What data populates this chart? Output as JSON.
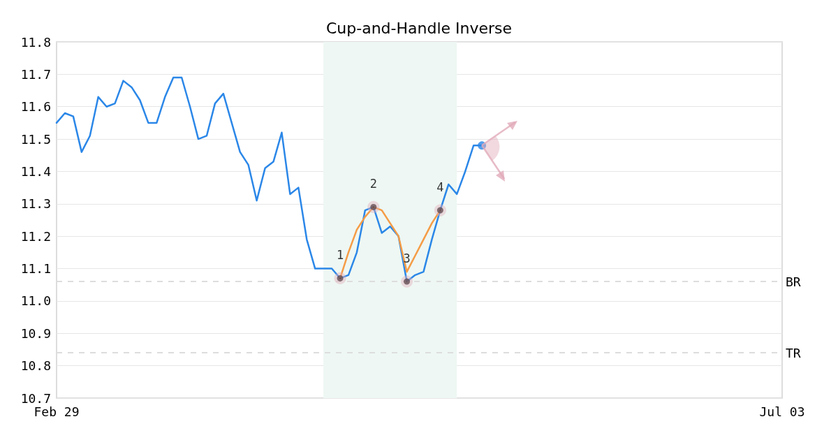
{
  "chart_data": {
    "type": "line",
    "title": "Cup-and-Handle Inverse",
    "categories": [
      "Feb 29",
      null,
      null,
      null,
      null,
      null,
      null,
      null,
      null,
      null,
      null,
      null,
      null,
      null,
      null,
      null,
      null,
      null,
      null,
      null,
      null,
      null,
      null,
      null,
      null,
      null,
      null,
      null,
      null,
      null,
      null,
      null,
      null,
      null,
      null,
      null,
      null,
      null,
      null,
      null,
      null,
      null,
      null,
      null,
      null,
      null,
      null,
      null,
      null,
      null,
      null,
      null,
      null,
      null,
      null,
      null,
      null,
      null,
      null,
      null,
      null,
      null,
      null,
      null,
      null,
      null,
      null,
      null,
      null,
      null,
      null,
      null,
      null,
      null,
      null,
      null,
      null,
      null,
      null,
      null,
      null,
      null,
      null,
      null,
      null,
      null,
      null,
      "Jul 03"
    ],
    "ylim": [
      10.7,
      11.8
    ],
    "yticks": [
      {
        "value": 10.7,
        "label": "10.7"
      },
      {
        "value": 10.8,
        "label": "10.8"
      },
      {
        "value": 10.9,
        "label": "10.9"
      },
      {
        "value": 11,
        "label": "11.0"
      },
      {
        "value": 11.1,
        "label": "11.1"
      },
      {
        "value": 11.2,
        "label": "11.2"
      },
      {
        "value": 11.3,
        "label": "11.3"
      },
      {
        "value": 11.4,
        "label": "11.4"
      },
      {
        "value": 11.5,
        "label": "11.5"
      },
      {
        "value": 11.6,
        "label": "11.6"
      },
      {
        "value": 11.7,
        "label": "11.7"
      },
      {
        "value": 11.8,
        "label": "11.8"
      }
    ],
    "grid": "y",
    "ref_lines": [
      {
        "axis": "y",
        "value": 11.065,
        "label": "BR",
        "color": "#dddddd",
        "line_style": "dashed"
      },
      {
        "axis": "y",
        "value": 10.84,
        "label": "TR",
        "color": "#dddddd",
        "line_style": "dashed"
      }
    ],
    "annotations": [
      {
        "text": "1",
        "y": 11.07
      },
      {
        "text": "2",
        "y": 11.29
      },
      {
        "text": "3",
        "y": 11.06
      },
      {
        "text": "4",
        "y": 11.28
      }
    ],
    "series": [
      {
        "color": "#2b87e8",
        "marker": "none",
        "values": [
          11.55,
          11.58,
          11.57,
          11.46,
          11.51,
          11.63,
          11.6,
          11.61,
          11.68,
          11.66,
          11.62,
          11.55,
          11.55,
          11.63,
          11.69,
          11.69,
          11.6,
          11.5,
          11.51,
          11.61,
          11.64,
          11.55,
          11.46,
          11.42,
          11.31,
          11.41,
          11.43,
          11.52,
          11.33,
          11.35,
          11.19,
          11.1,
          11.1,
          11.1,
          11.07,
          11.08,
          11.15,
          11.28,
          11.29,
          11.21,
          11.23,
          11.2,
          11.06,
          11.08,
          11.09,
          11.19,
          11.28,
          11.36,
          11.33,
          11.4,
          11.48,
          11.48,
          null,
          null,
          null,
          null,
          null,
          null,
          null,
          null,
          null,
          null,
          null,
          null,
          null,
          null,
          null,
          null,
          null,
          null,
          null,
          null,
          null,
          null,
          null,
          null,
          null,
          null,
          null,
          null,
          null,
          null,
          null,
          null,
          null,
          null,
          null,
          null
        ]
      },
      {
        "color": "#f59c46",
        "marker": "none",
        "values": [
          null,
          null,
          null,
          null,
          null,
          null,
          null,
          null,
          null,
          null,
          null,
          null,
          null,
          null,
          null,
          null,
          null,
          null,
          null,
          null,
          null,
          null,
          null,
          null,
          null,
          null,
          null,
          null,
          null,
          null,
          null,
          null,
          null,
          null,
          11.07,
          11.15,
          11.22,
          11.26,
          11.29,
          11.28,
          11.24,
          11.2,
          11.09,
          11.14,
          11.19,
          11.24,
          11.28,
          null,
          null,
          null,
          null,
          null,
          null,
          null,
          null,
          null,
          null,
          null,
          null,
          null,
          null,
          null,
          null,
          null,
          null,
          null,
          null,
          null,
          null,
          null,
          null,
          null,
          null,
          null,
          null,
          null,
          null,
          null,
          null,
          null,
          null,
          null,
          null,
          null,
          null,
          null,
          null,
          null
        ]
      },
      {
        "type": "scatter",
        "color": "#000000",
        "marker": "circle",
        "values": [
          null,
          null,
          null,
          null,
          null,
          null,
          null,
          null,
          null,
          null,
          null,
          null,
          null,
          null,
          null,
          null,
          null,
          null,
          null,
          null,
          null,
          null,
          null,
          null,
          null,
          null,
          null,
          null,
          null,
          null,
          null,
          null,
          null,
          null,
          11.07,
          null,
          null,
          null,
          11.29,
          null,
          null,
          null,
          11.06,
          null,
          null,
          null,
          11.28,
          null,
          null,
          null,
          null,
          null,
          null,
          null,
          null,
          null,
          null,
          null,
          null,
          null,
          null,
          null,
          null,
          null,
          null,
          null,
          null,
          null,
          null,
          null,
          null,
          null,
          null,
          null,
          null,
          null,
          null,
          null,
          null,
          null,
          null,
          null,
          null,
          null,
          null,
          null,
          null,
          null
        ]
      },
      {
        "type": "scatter",
        "color": "#2b87e8",
        "marker": "circle",
        "values": [
          null,
          null,
          null,
          null,
          null,
          null,
          null,
          null,
          null,
          null,
          null,
          null,
          null,
          null,
          null,
          null,
          null,
          null,
          null,
          null,
          null,
          null,
          null,
          null,
          null,
          null,
          null,
          null,
          null,
          null,
          null,
          null,
          null,
          null,
          null,
          null,
          null,
          null,
          null,
          null,
          null,
          null,
          null,
          null,
          null,
          null,
          null,
          null,
          null,
          null,
          null,
          11.48,
          null,
          null,
          null,
          null,
          null,
          null,
          null,
          null,
          null,
          null,
          null,
          null,
          null,
          null,
          null,
          null,
          null,
          null,
          null,
          null,
          null,
          null,
          null,
          null,
          null,
          null,
          null,
          null,
          null,
          null,
          null,
          null,
          null,
          null,
          null,
          null
        ]
      }
    ]
  }
}
